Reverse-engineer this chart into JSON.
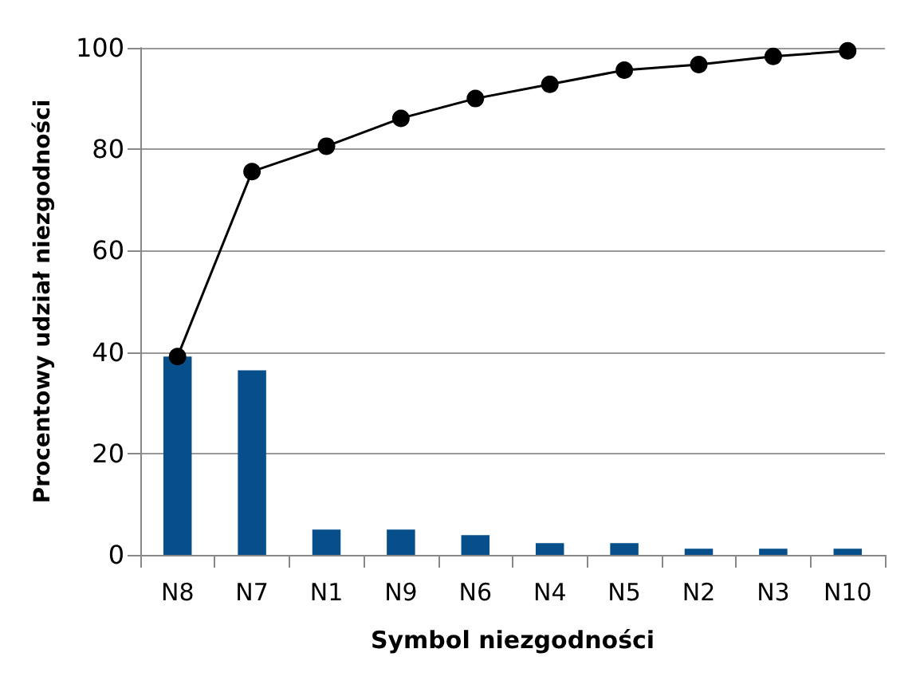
{
  "chart_data": {
    "type": "bar",
    "xlabel": "Symbol niezgodności",
    "ylabel": "Procentowy udział niezgodności",
    "categories": [
      "N8",
      "N7",
      "N1",
      "N9",
      "N6",
      "N4",
      "N5",
      "N2",
      "N3",
      "N10"
    ],
    "series": [
      {
        "color": "#074f8a",
        "values": [
          39.1,
          36.4,
          5.0,
          5.0,
          3.9,
          2.3,
          2.3,
          1.2,
          1.2,
          1.2
        ]
      },
      {
        "type": "line",
        "color": "#000000",
        "marker": "circle",
        "values": [
          39.1,
          75.6,
          80.6,
          86.1,
          90.0,
          92.8,
          95.6,
          96.7,
          98.3,
          99.4
        ]
      }
    ],
    "ylim": [
      0,
      100
    ],
    "yticks": [
      0,
      20,
      40,
      60,
      80,
      100
    ],
    "grid": "y"
  }
}
